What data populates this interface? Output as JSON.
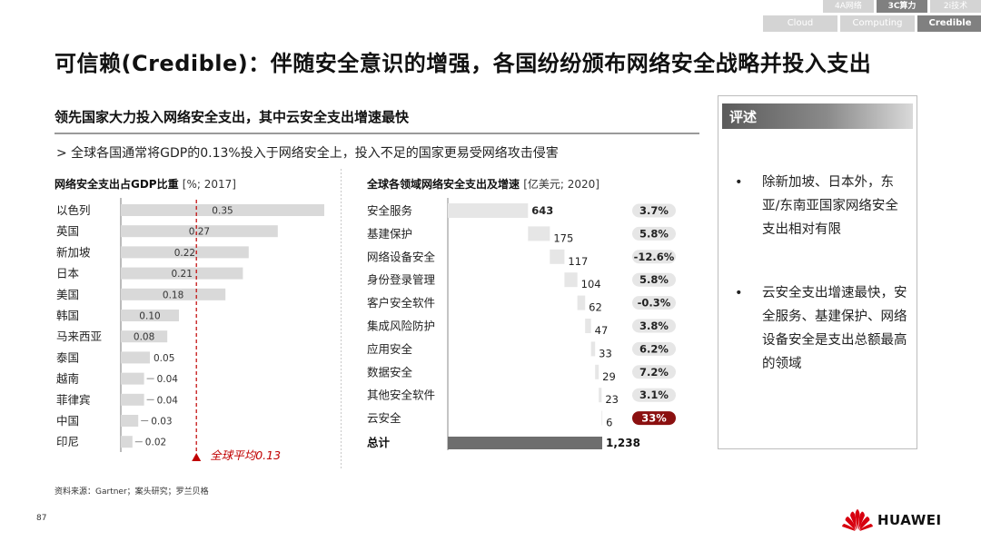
{
  "nav": {
    "row1": [
      "4A网络",
      "3C算力",
      "2i技术"
    ],
    "row2": [
      "Cloud",
      "Computing",
      "Credible"
    ],
    "active_row1": 1,
    "active_row2": 2
  },
  "title": "可信赖(Credible)：伴随安全意识的增强，各国纷纷颁布网络安全战略并投入支出",
  "section_title": "领先国家大力投入网络安全支出，其中云安全支出增速最快",
  "bullet": "> 全球各国通常将GDP的0.13%投入于网络安全上，投入不足的国家更易受网络攻击侵害",
  "chart_data": [
    {
      "type": "bar",
      "orientation": "horizontal",
      "title": "网络安全支出占GDP比重",
      "unit": "[%; 2017]",
      "categories": [
        "以色列",
        "英国",
        "新加坡",
        "日本",
        "美国",
        "韩国",
        "马来西亚",
        "泰国",
        "越南",
        "菲律宾",
        "中国",
        "印尼"
      ],
      "values": [
        0.35,
        0.27,
        0.22,
        0.21,
        0.18,
        0.1,
        0.08,
        0.05,
        0.04,
        0.04,
        0.03,
        0.02
      ],
      "labels": [
        "0.35",
        "0.27",
        "0.22",
        "0.21",
        "0.18",
        "0.10",
        "0.08",
        "0.05",
        "0.04",
        "0.04",
        "0.03",
        "0.02"
      ],
      "xlim": [
        0,
        0.35
      ],
      "reference_line": {
        "value": 0.13,
        "label": "全球平均0.13"
      },
      "bar_color": "#d9d9d9",
      "ref_color": "#c00000"
    },
    {
      "type": "bar",
      "orientation": "horizontal waterfall",
      "title": "全球各领域网络安全支出及增速",
      "unit": "[亿美元; 2020]",
      "categories": [
        "安全服务",
        "基建保护",
        "网络设备安全",
        "身份登录管理",
        "客户安全软件",
        "集成风险防护",
        "应用安全",
        "数据安全",
        "其他安全软件",
        "云安全"
      ],
      "values": [
        643,
        175,
        117,
        104,
        62,
        47,
        33,
        29,
        23,
        6
      ],
      "labels": [
        "643",
        "175",
        "117",
        "104",
        "62",
        "47",
        "33",
        "29",
        "23",
        "6"
      ],
      "growth": [
        "3.7%",
        "5.8%",
        "-12.6%",
        "5.8%",
        "-0.3%",
        "3.8%",
        "6.2%",
        "7.2%",
        "3.1%",
        "33%"
      ],
      "highlight_index": 9,
      "total": {
        "label": "总计",
        "value": 1238,
        "display": "1,238"
      },
      "xlim": [
        0,
        1238
      ],
      "bar_color": "#e6e6e6",
      "total_color": "#6e6e6e",
      "pill_color": "#e6e6e6",
      "highlight_color": "#8b1010"
    }
  ],
  "comment": {
    "title": "评述",
    "items": [
      "除新加坡、日本外，东亚/东南亚国家网络安全支出相对有限",
      "云安全支出增速最快，安全服务、基建保护、网络设备安全是支出总额最高的领域"
    ]
  },
  "source": "资料来源：Gartner；案头研究；罗兰贝格",
  "page_number": "87",
  "logo_text": "HUAWEI"
}
